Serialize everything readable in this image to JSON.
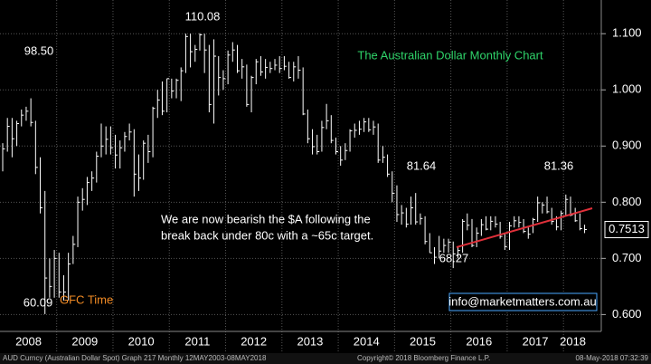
{
  "chart_data": {
    "type": "ohlc",
    "title": "The Australian Dollar Monthly Chart",
    "categories": [
      null,
      null,
      null,
      null,
      null,
      null,
      "2008",
      null,
      null,
      null,
      null,
      null,
      null,
      null,
      null,
      null,
      null,
      null,
      "2009",
      null,
      null,
      null,
      null,
      null,
      null,
      null,
      null,
      null,
      null,
      null,
      "2010",
      null,
      null,
      null,
      null,
      null,
      null,
      null,
      null,
      null,
      null,
      null,
      "2011",
      null,
      null,
      null,
      null,
      null,
      null,
      null,
      null,
      null,
      null,
      null,
      "2012",
      null,
      null,
      null,
      null,
      null,
      null,
      null,
      null,
      null,
      null,
      null,
      "2013",
      null,
      null,
      null,
      null,
      null,
      null,
      null,
      null,
      null,
      null,
      null,
      "2014",
      null,
      null,
      null,
      null,
      null,
      null,
      null,
      null,
      null,
      null,
      null,
      "2015",
      null,
      null,
      null,
      null,
      null,
      null,
      null,
      null,
      null,
      null,
      null,
      "2016",
      null,
      null,
      null,
      null,
      null,
      null,
      null,
      null,
      null,
      null,
      null,
      "2017",
      null,
      null,
      null,
      null,
      null,
      null,
      null,
      "2018",
      null,
      null
    ],
    "high": [
      0.905,
      0.95,
      0.95,
      0.945,
      0.965,
      0.97,
      0.985,
      0.945,
      0.88,
      0.82,
      0.7,
      0.715,
      0.71,
      0.67,
      0.71,
      0.74,
      0.81,
      0.825,
      0.845,
      0.855,
      0.89,
      0.94,
      0.935,
      0.935,
      0.92,
      0.91,
      0.925,
      0.94,
      0.93,
      0.885,
      0.91,
      0.92,
      0.97,
      1.0,
      1.015,
      1.02,
      1.02,
      1.02,
      1.04,
      1.1,
      1.1,
      1.08,
      1.1008,
      1.1,
      1.08,
      1.09,
      1.06,
      1.035,
      1.07,
      1.085,
      1.08,
      1.055,
      1.045,
      1.025,
      1.055,
      1.06,
      1.055,
      1.05,
      1.055,
      1.06,
      1.06,
      1.05,
      1.05,
      1.06,
      1.04,
      0.965,
      0.93,
      0.92,
      0.945,
      0.975,
      0.955,
      0.915,
      0.9,
      0.905,
      0.93,
      0.94,
      0.945,
      0.95,
      0.95,
      0.945,
      0.94,
      0.9,
      0.885,
      0.855,
      0.83,
      0.795,
      0.79,
      0.81,
      0.8164,
      0.78,
      0.775,
      0.745,
      0.72,
      0.74,
      0.735,
      0.735,
      0.73,
      0.72,
      0.77,
      0.78,
      0.77,
      0.755,
      0.77,
      0.775,
      0.775,
      0.775,
      0.765,
      0.745,
      0.765,
      0.775,
      0.775,
      0.77,
      0.755,
      0.772,
      0.81,
      0.8,
      0.81,
      0.79,
      0.775,
      0.785,
      0.8136,
      0.81,
      0.79,
      0.78,
      0.76
    ],
    "low": [
      0.855,
      0.89,
      0.88,
      0.9,
      0.935,
      0.945,
      0.935,
      0.85,
      0.78,
      0.6009,
      0.63,
      0.63,
      0.63,
      0.625,
      0.625,
      0.69,
      0.72,
      0.785,
      0.795,
      0.82,
      0.835,
      0.88,
      0.885,
      0.885,
      0.86,
      0.86,
      0.89,
      0.91,
      0.81,
      0.82,
      0.84,
      0.87,
      0.88,
      0.95,
      0.955,
      0.96,
      0.985,
      0.985,
      0.98,
      1.03,
      1.04,
      1.05,
      1.07,
      1.03,
      0.96,
      0.94,
      0.99,
      1.0,
      1.01,
      1.05,
      1.03,
      1.02,
      0.97,
      0.96,
      1.01,
      1.025,
      1.02,
      1.03,
      1.035,
      1.03,
      1.035,
      1.02,
      1.015,
      1.02,
      0.955,
      0.905,
      0.885,
      0.885,
      0.89,
      0.93,
      0.905,
      0.885,
      0.865,
      0.875,
      0.89,
      0.915,
      0.92,
      0.925,
      0.925,
      0.92,
      0.87,
      0.87,
      0.845,
      0.8,
      0.765,
      0.76,
      0.755,
      0.76,
      0.76,
      0.76,
      0.725,
      0.71,
      0.69,
      0.7,
      0.71,
      0.71,
      0.6827,
      0.7,
      0.71,
      0.75,
      0.72,
      0.72,
      0.74,
      0.75,
      0.75,
      0.755,
      0.735,
      0.715,
      0.715,
      0.755,
      0.755,
      0.745,
      0.735,
      0.745,
      0.765,
      0.78,
      0.78,
      0.76,
      0.75,
      0.75,
      0.775,
      0.775,
      0.765,
      0.75,
      0.745
    ],
    "close": [
      0.895,
      0.935,
      0.913,
      0.94,
      0.955,
      0.962,
      0.942,
      0.862,
      0.79,
      0.665,
      0.65,
      0.7,
      0.64,
      0.64,
      0.69,
      0.725,
      0.8,
      0.805,
      0.835,
      0.843,
      0.882,
      0.9,
      0.912,
      0.897,
      0.884,
      0.897,
      0.917,
      0.925,
      0.85,
      0.843,
      0.905,
      0.89,
      0.967,
      0.982,
      0.962,
      1.02,
      0.998,
      1.017,
      1.034,
      1.095,
      1.068,
      1.072,
      1.098,
      1.071,
      0.974,
      1.06,
      1.022,
      1.02,
      1.062,
      1.071,
      1.034,
      1.041,
      0.974,
      1.022,
      1.05,
      1.032,
      1.04,
      1.038,
      1.044,
      1.038,
      1.042,
      1.022,
      1.041,
      1.035,
      0.957,
      0.913,
      0.899,
      0.89,
      0.933,
      0.945,
      0.91,
      0.89,
      0.875,
      0.892,
      0.927,
      0.928,
      0.93,
      0.943,
      0.929,
      0.934,
      0.875,
      0.88,
      0.85,
      0.816,
      0.778,
      0.781,
      0.761,
      0.79,
      0.765,
      0.771,
      0.73,
      0.71,
      0.702,
      0.713,
      0.723,
      0.729,
      0.708,
      0.714,
      0.766,
      0.759,
      0.723,
      0.745,
      0.76,
      0.752,
      0.766,
      0.761,
      0.739,
      0.721,
      0.758,
      0.767,
      0.764,
      0.748,
      0.743,
      0.769,
      0.799,
      0.795,
      0.783,
      0.766,
      0.756,
      0.78,
      0.805,
      0.777,
      0.767,
      0.753,
      0.7513
    ],
    "color": "#ffffff",
    "ylim": [
      0.57,
      1.16
    ],
    "yticks": [
      {
        "value": 0.6,
        "label": "0.600"
      },
      {
        "value": 0.7,
        "label": "0.700"
      },
      {
        "value": 0.8,
        "label": "0.800"
      },
      {
        "value": 0.9,
        "label": "0.900"
      },
      {
        "value": 1.0,
        "label": "1.000"
      },
      {
        "value": 1.1,
        "label": "1.100"
      }
    ],
    "grid": true,
    "annotations": [
      "98.50",
      "110.08",
      "60.09",
      "GFC Time",
      "81.64",
      "68.27",
      "81.36",
      "We are now bearish the $A following the",
      "break back under 80c with a ~65c target.",
      "info@marketmatters.com.au"
    ],
    "footer": [
      "AUD Curncy (Australian Dollar Spot) Graph 217  Monthly 12MAY2003-08MAY2018",
      "Copyright© 2018 Bloomberg Finance L.P.",
      "08-May-2018 07:32:39"
    ]
  }
}
